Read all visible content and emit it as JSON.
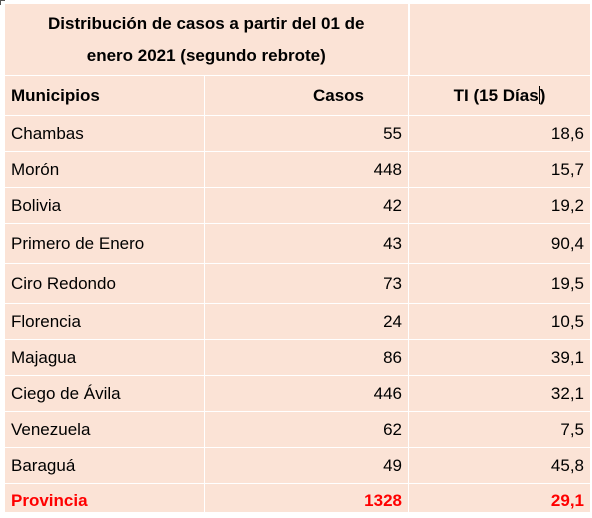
{
  "table": {
    "title_line1": "Distribución de casos  a partir del 01 de",
    "title_line2": "enero 2021 (segundo rebrote)",
    "headers": {
      "municipios": "Municipios",
      "casos": "Casos",
      "ti": "TI    (15 Días)"
    },
    "rows": [
      {
        "municipio": "Chambas",
        "casos": "55",
        "ti": "18,6"
      },
      {
        "municipio": "Morón",
        "casos": "448",
        "ti": "15,7"
      },
      {
        "municipio": "Bolivia",
        "casos": "42",
        "ti": "19,2"
      },
      {
        "municipio": "Primero de Enero",
        "casos": "43",
        "ti": "90,4"
      },
      {
        "municipio": "Ciro Redondo",
        "casos": "73",
        "ti": "19,5"
      },
      {
        "municipio": "Florencia",
        "casos": "24",
        "ti": "10,5"
      },
      {
        "municipio": "Majagua",
        "casos": "86",
        "ti": "39,1"
      },
      {
        "municipio": "Ciego de Ávila",
        "casos": "446",
        "ti": "32,1"
      },
      {
        "municipio": "Venezuela",
        "casos": "62",
        "ti": "7,5"
      },
      {
        "municipio": "Baraguá",
        "casos": "49",
        "ti": "45,8"
      }
    ],
    "total": {
      "municipio": "Provincia",
      "casos": "1328",
      "ti": "29,1"
    }
  },
  "colors": {
    "cell_background": "#fbe3d6",
    "total_text": "#ff0000",
    "grid_lines": "#ffffff"
  }
}
